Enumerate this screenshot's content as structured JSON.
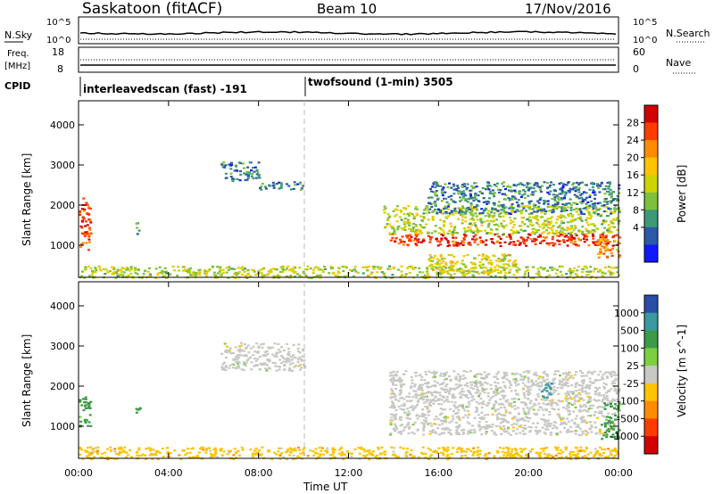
{
  "header": {
    "station": "Saskatoon (fitACF)",
    "beam": "Beam 10",
    "date": "17/Nov/2016"
  },
  "noise_panel": {
    "left_label": "N.Sky",
    "left_ticks": [
      "10^5",
      "10^0"
    ],
    "right_ticks": [
      "10^5",
      "10^0"
    ],
    "right_label": "N.Search"
  },
  "freq_panel": {
    "left_label_1": "Freq.",
    "left_label_2": "[MHz]",
    "left_ticks": [
      "18",
      "8"
    ],
    "right_ticks": [
      "60",
      "0"
    ],
    "right_label": "Nave"
  },
  "cpid": {
    "label": "CPID",
    "program_1": "interleavedscan (fast) -191",
    "program_2": "twofsound (1-min) 3505"
  },
  "power_scale": {
    "title": "Power [dB]",
    "tick_labels": [
      "28",
      "24",
      "20",
      "16",
      "12",
      "8",
      "4"
    ],
    "colors": [
      "#d40000",
      "#ff3c00",
      "#ff8c00",
      "#ffc400",
      "#ccd400",
      "#7cc03c",
      "#3c9a78",
      "#2c5aa8",
      "#1018ff"
    ]
  },
  "velocity_scale": {
    "title": "Velocity [m s^-1]",
    "tick_labels": [
      "1000",
      "500",
      "100",
      "25",
      "-25",
      "-100",
      "-500",
      "-1000"
    ],
    "colors": [
      "#2a4ea8",
      "#3a9aa0",
      "#3c9a48",
      "#7cd040",
      "#c8c8c4",
      "#ffc400",
      "#ff8c00",
      "#ff3c00",
      "#d40000"
    ]
  },
  "axes": {
    "ylabel": "Slant Range [km]",
    "yticks": [
      "1000",
      "2000",
      "3000",
      "4000"
    ],
    "xticks": [
      "00:00",
      "04:00",
      "08:00",
      "12:00",
      "16:00",
      "20:00",
      "00:00"
    ],
    "xlabel": "Time UT"
  },
  "chart_data": [
    {
      "type": "heatmap",
      "title": "Power [dB]",
      "xlabel": "Time UT",
      "ylabel": "Slant Range [km]",
      "xlim": [
        0,
        24
      ],
      "ylim": [
        200,
        4600
      ],
      "x_units": "hours UT",
      "colorbar_range": [
        0,
        30
      ],
      "regions": [
        {
          "t": [
            0.0,
            0.5
          ],
          "range_km": [
            900,
            2200
          ],
          "power_db": 26
        },
        {
          "t": [
            2.5,
            2.7
          ],
          "range_km": [
            1300,
            1600
          ],
          "power_db": 8
        },
        {
          "t": [
            6.3,
            8.0
          ],
          "range_km": [
            2600,
            3100
          ],
          "power_db": 6
        },
        {
          "t": [
            8.0,
            10.0
          ],
          "range_km": [
            2400,
            2600
          ],
          "power_db": 6
        },
        {
          "t": [
            13.8,
            24.0
          ],
          "range_km": [
            1000,
            1300
          ],
          "power_db": 28
        },
        {
          "t": [
            13.5,
            24.0
          ],
          "range_km": [
            1300,
            2000
          ],
          "power_db": 14
        },
        {
          "t": [
            15.5,
            24.0
          ],
          "range_km": [
            1800,
            2600
          ],
          "power_db": 6
        },
        {
          "t": [
            23.0,
            24.0
          ],
          "range_km": [
            700,
            1300
          ],
          "power_db": 22
        },
        {
          "t": [
            15.5,
            19.5
          ],
          "range_km": [
            300,
            800
          ],
          "power_db": 16
        },
        {
          "t": [
            0.0,
            24.0
          ],
          "range_km": [
            200,
            500
          ],
          "power_db": 14
        }
      ]
    },
    {
      "type": "heatmap",
      "title": "Velocity [m s^-1]",
      "xlabel": "Time UT",
      "ylabel": "Slant Range [km]",
      "xlim": [
        0,
        24
      ],
      "ylim": [
        200,
        4600
      ],
      "x_units": "hours UT",
      "colorbar_range": [
        -1000,
        1000
      ],
      "regions": [
        {
          "t": [
            0.0,
            0.5
          ],
          "range_km": [
            1000,
            1800
          ],
          "velocity_ms": 100
        },
        {
          "t": [
            2.5,
            2.7
          ],
          "range_km": [
            1300,
            1600
          ],
          "velocity_ms": 100
        },
        {
          "t": [
            6.3,
            10.0
          ],
          "range_km": [
            2400,
            3100
          ],
          "velocity_ms": 0
        },
        {
          "t": [
            13.8,
            24.0
          ],
          "range_km": [
            800,
            2400
          ],
          "velocity_ms": 0
        },
        {
          "t": [
            20.5,
            21.0
          ],
          "range_km": [
            1700,
            2100
          ],
          "velocity_ms": 500
        },
        {
          "t": [
            23.2,
            24.0
          ],
          "range_km": [
            700,
            1600
          ],
          "velocity_ms": 100
        },
        {
          "t": [
            0.0,
            24.0
          ],
          "range_km": [
            200,
            500
          ],
          "velocity_ms": -50
        }
      ]
    }
  ]
}
